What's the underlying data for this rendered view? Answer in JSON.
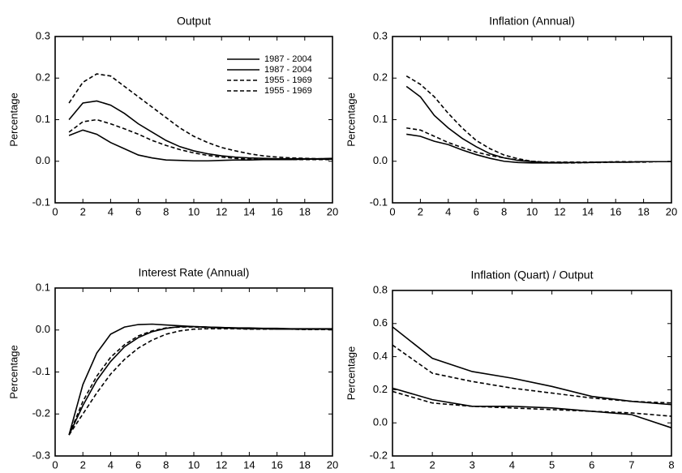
{
  "chart_data": [
    {
      "type": "line",
      "title": "Output",
      "ylabel": "Percentage",
      "x": [
        1,
        2,
        3,
        4,
        5,
        6,
        7,
        8,
        9,
        10,
        11,
        12,
        13,
        14,
        15,
        16,
        17,
        18,
        19,
        20
      ],
      "xlim": [
        0,
        20
      ],
      "xticks": [
        0,
        2,
        4,
        6,
        8,
        10,
        12,
        14,
        16,
        18,
        20
      ],
      "ylim": [
        -0.1,
        0.3
      ],
      "yticks": [
        -0.1,
        {
          "value": 0,
          "label": "0.0"
        },
        0.1,
        0.2,
        0.3
      ],
      "legend": "upper right",
      "series": [
        {
          "name": "1987 - 2004",
          "color": "#000000",
          "dash": false,
          "values": [
            0.1,
            0.14,
            0.145,
            0.135,
            0.115,
            0.09,
            0.07,
            0.05,
            0.035,
            0.025,
            0.018,
            0.013,
            0.01,
            0.008,
            0.007,
            0.006,
            0.006,
            0.006,
            0.006,
            0.007
          ]
        },
        {
          "name": "1987 - 2004",
          "color": "#000000",
          "dash": false,
          "values": [
            0.062,
            0.075,
            0.065,
            0.045,
            0.03,
            0.015,
            0.008,
            0.003,
            0.002,
            0.001,
            0.001,
            0.002,
            0.003,
            0.003,
            0.004,
            0.004,
            0.004,
            0.005,
            0.005,
            0.005
          ]
        },
        {
          "name": "1955 - 1969",
          "color": "#000000",
          "dash": true,
          "values": [
            0.14,
            0.19,
            0.21,
            0.205,
            0.18,
            0.155,
            0.13,
            0.105,
            0.08,
            0.06,
            0.045,
            0.033,
            0.025,
            0.018,
            0.013,
            0.01,
            0.008,
            0.007,
            0.006,
            0.006
          ]
        },
        {
          "name": "1955 - 1969",
          "color": "#000000",
          "dash": true,
          "values": [
            0.07,
            0.095,
            0.1,
            0.09,
            0.078,
            0.065,
            0.05,
            0.038,
            0.028,
            0.02,
            0.014,
            0.01,
            0.007,
            0.005,
            0.004,
            0.004,
            0.004,
            0.004,
            0.004,
            0.004
          ]
        }
      ]
    },
    {
      "type": "line",
      "title": "Inflation (Annual)",
      "ylabel": "Percentage",
      "x": [
        1,
        2,
        3,
        4,
        5,
        6,
        7,
        8,
        9,
        10,
        11,
        12,
        13,
        14,
        15,
        16,
        17,
        18,
        19,
        20
      ],
      "xlim": [
        0,
        20
      ],
      "xticks": [
        0,
        2,
        4,
        6,
        8,
        10,
        12,
        14,
        16,
        18,
        20
      ],
      "ylim": [
        -0.1,
        0.3
      ],
      "yticks": [
        -0.1,
        {
          "value": 0,
          "label": "0.0"
        },
        0.1,
        0.2,
        0.3
      ],
      "series": [
        {
          "color": "#000000",
          "dash": false,
          "values": [
            0.18,
            0.155,
            0.11,
            0.08,
            0.055,
            0.035,
            0.018,
            0.008,
            0.002,
            -0.001,
            -0.003,
            -0.003,
            -0.003,
            -0.003,
            -0.002,
            -0.002,
            -0.002,
            -0.001,
            -0.001,
            -0.001
          ]
        },
        {
          "color": "#000000",
          "dash": false,
          "values": [
            0.065,
            0.06,
            0.048,
            0.04,
            0.027,
            0.016,
            0.007,
            0.0,
            -0.003,
            -0.004,
            -0.004,
            -0.004,
            -0.003,
            -0.003,
            -0.002,
            -0.002,
            -0.002,
            -0.001,
            -0.001,
            -0.001
          ]
        },
        {
          "color": "#000000",
          "dash": true,
          "values": [
            0.205,
            0.185,
            0.155,
            0.115,
            0.08,
            0.05,
            0.03,
            0.015,
            0.006,
            0.0,
            -0.003,
            -0.004,
            -0.004,
            -0.003,
            -0.003,
            -0.002,
            -0.002,
            -0.002,
            -0.001,
            -0.001
          ]
        },
        {
          "color": "#000000",
          "dash": true,
          "values": [
            0.08,
            0.075,
            0.06,
            0.045,
            0.033,
            0.022,
            0.014,
            0.008,
            0.003,
            0.0,
            -0.002,
            -0.002,
            -0.002,
            -0.002,
            -0.002,
            -0.001,
            -0.001,
            -0.001,
            -0.001,
            -0.001
          ]
        }
      ]
    },
    {
      "type": "line",
      "title": "Interest Rate (Annual)",
      "ylabel": "Percentage",
      "x": [
        1,
        2,
        3,
        4,
        5,
        6,
        7,
        8,
        9,
        10,
        11,
        12,
        13,
        14,
        15,
        16,
        17,
        18,
        19,
        20
      ],
      "xlim": [
        0,
        20
      ],
      "xticks": [
        0,
        2,
        4,
        6,
        8,
        10,
        12,
        14,
        16,
        18,
        20
      ],
      "ylim": [
        -0.3,
        0.1
      ],
      "yticks": [
        -0.3,
        -0.2,
        -0.1,
        {
          "value": 0,
          "label": "0.0"
        },
        0.1
      ],
      "series": [
        {
          "color": "#000000",
          "dash": false,
          "values": [
            -0.25,
            -0.13,
            -0.055,
            -0.01,
            0.007,
            0.013,
            0.014,
            0.012,
            0.01,
            0.008,
            0.007,
            0.006,
            0.005,
            0.005,
            0.004,
            0.004,
            0.003,
            0.003,
            0.003,
            0.003
          ]
        },
        {
          "color": "#000000",
          "dash": false,
          "values": [
            -0.25,
            -0.18,
            -0.12,
            -0.075,
            -0.04,
            -0.018,
            -0.004,
            0.004,
            0.008,
            0.008,
            0.007,
            0.006,
            0.005,
            0.004,
            0.003,
            0.003,
            0.002,
            0.002,
            0.002,
            0.002
          ]
        },
        {
          "color": "#000000",
          "dash": true,
          "values": [
            -0.25,
            -0.17,
            -0.11,
            -0.065,
            -0.035,
            -0.014,
            -0.002,
            0.005,
            0.007,
            0.007,
            0.006,
            0.005,
            0.004,
            0.003,
            0.003,
            0.002,
            0.002,
            0.002,
            0.002,
            0.002
          ]
        },
        {
          "color": "#000000",
          "dash": true,
          "values": [
            -0.25,
            -0.2,
            -0.15,
            -0.105,
            -0.07,
            -0.043,
            -0.024,
            -0.01,
            -0.002,
            0.002,
            0.003,
            0.003,
            0.003,
            0.002,
            0.002,
            0.002,
            0.002,
            0.001,
            0.001,
            0.001
          ]
        }
      ]
    },
    {
      "type": "line",
      "title": "Inflation (Quart) / Output",
      "ylabel": "Percentage",
      "x": [
        1,
        2,
        3,
        4,
        5,
        6,
        7,
        8
      ],
      "xlim": [
        1,
        8
      ],
      "xticks": [
        1,
        2,
        3,
        4,
        5,
        6,
        7,
        8
      ],
      "ylim": [
        -0.2,
        0.8
      ],
      "yticks": [
        -0.2,
        {
          "value": 0,
          "label": "0.0"
        },
        0.2,
        0.4,
        0.6,
        0.8
      ],
      "series": [
        {
          "color": "#000000",
          "dash": false,
          "values": [
            0.58,
            0.39,
            0.31,
            0.27,
            0.22,
            0.16,
            0.13,
            0.11
          ]
        },
        {
          "color": "#000000",
          "dash": true,
          "values": [
            0.47,
            0.3,
            0.25,
            0.21,
            0.18,
            0.15,
            0.13,
            0.12
          ]
        },
        {
          "color": "#000000",
          "dash": false,
          "values": [
            0.21,
            0.14,
            0.1,
            0.1,
            0.09,
            0.07,
            0.05,
            -0.03
          ]
        },
        {
          "color": "#000000",
          "dash": true,
          "values": [
            0.19,
            0.12,
            0.1,
            0.09,
            0.08,
            0.07,
            0.06,
            0.04
          ]
        }
      ]
    }
  ]
}
